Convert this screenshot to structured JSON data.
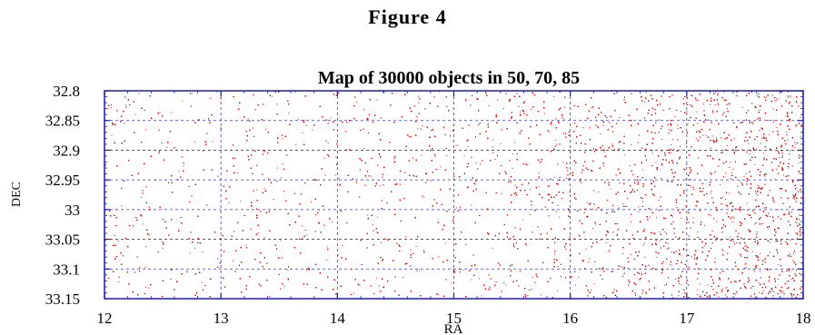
{
  "figure_label": "Figure  4",
  "chart_data": {
    "type": "scatter",
    "title": "Map of 30000 objects in 50, 70, 85",
    "xlabel": "RA",
    "ylabel": "DEC",
    "xlim": [
      12,
      18
    ],
    "ylim": [
      32.8,
      33.15
    ],
    "y_inverted": true,
    "x_ticks": [
      "12",
      "13",
      "14",
      "15",
      "16",
      "17",
      "18"
    ],
    "y_ticks": [
      "32.8",
      "32.85",
      "32.9",
      "32.95",
      "33",
      "33.05",
      "33.1",
      "33.15"
    ],
    "grid": true,
    "n_points": 30000,
    "density_profile": {
      "ra": [
        12,
        13,
        14,
        15,
        16,
        16.5,
        17,
        17.5,
        18
      ],
      "relative_density": [
        1.0,
        1.0,
        1.0,
        1.05,
        1.6,
        2.3,
        3.0,
        3.8,
        4.2
      ]
    },
    "colors": {
      "points": "#cc0000",
      "frame": "#1a1ab0",
      "grid": "#3333cc"
    }
  }
}
